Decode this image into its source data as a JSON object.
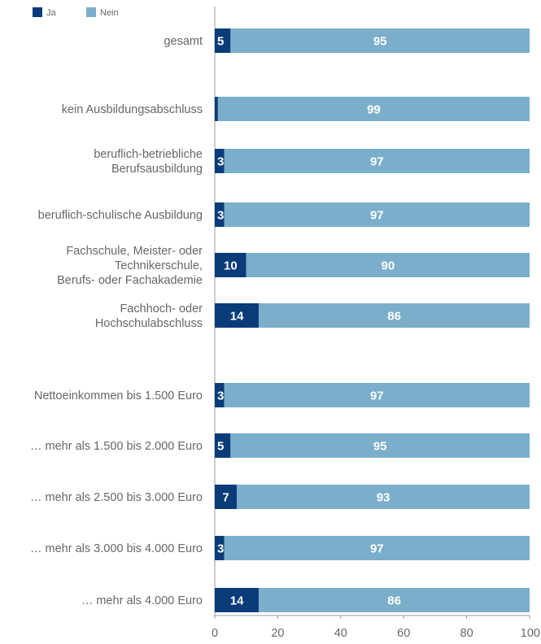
{
  "chart_data": {
    "type": "bar",
    "orientation": "horizontal",
    "stacked": true,
    "categories": [
      [
        "gesamt"
      ],
      [
        "kein Ausbildungsabschluss"
      ],
      [
        "beruflich-betriebliche",
        "Berufsausbildung"
      ],
      [
        "beruflich-schulische Ausbildung"
      ],
      [
        "Fachschule, Meister- oder",
        "Technikerschule,",
        "Berufs- oder Fachakademie"
      ],
      [
        "Fachhoch- oder",
        "Hochschulabschluss"
      ],
      [
        "Nettoeinkommen bis 1.500 Euro"
      ],
      [
        "… mehr als 1.500 bis 2.000 Euro"
      ],
      [
        "… mehr als 2.500 bis 3.000 Euro"
      ],
      [
        "… mehr als 3.000 bis 4.000 Euro"
      ],
      [
        "… mehr als 4.000 Euro"
      ]
    ],
    "series": [
      {
        "name": "Ja",
        "color": "#0a3c7a",
        "values": [
          5,
          1,
          3,
          3,
          10,
          14,
          3,
          5,
          7,
          3,
          14
        ]
      },
      {
        "name": "Nein",
        "color": "#7aaecb",
        "values": [
          95,
          99,
          97,
          97,
          90,
          86,
          97,
          95,
          93,
          97,
          86
        ]
      }
    ],
    "xlim": [
      0,
      100
    ],
    "xticks": [
      0,
      20,
      40,
      60,
      80,
      100
    ],
    "legend_position": "top-left",
    "grid": false
  }
}
